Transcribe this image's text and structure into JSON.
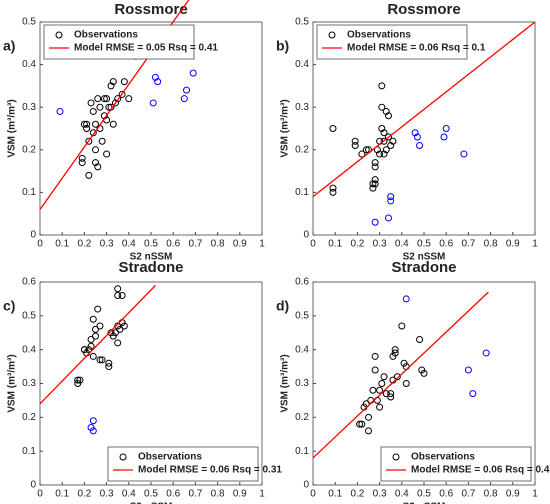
{
  "chart_data": [
    {
      "type": "scatter",
      "label": "a)",
      "title": "Rossmore",
      "xlabel": "S2 nSSM",
      "ylabel": "VSM (m³/m³)",
      "legend": "upper left",
      "grid": false,
      "xlim": [
        0,
        1
      ],
      "xticks": [
        0,
        0.1,
        0.2,
        0.3,
        0.4,
        0.5,
        0.6,
        0.7,
        0.8,
        0.9,
        1
      ],
      "ylim": [
        0,
        0.5
      ],
      "yticks": [
        0,
        0.1,
        0.2,
        0.3,
        0.4,
        0.5
      ],
      "series": [
        {
          "name": "Observations",
          "color": "#000000",
          "x": [
            0.19,
            0.19,
            0.2,
            0.21,
            0.21,
            0.22,
            0.22,
            0.23,
            0.24,
            0.24,
            0.25,
            0.25,
            0.26,
            0.26,
            0.27,
            0.27,
            0.28,
            0.29,
            0.29,
            0.3,
            0.3,
            0.31,
            0.32,
            0.32,
            0.33,
            0.33,
            0.34,
            0.35,
            0.37,
            0.38,
            0.4,
            0.43,
            0.3,
            0.25
          ],
          "values": [
            0.18,
            0.17,
            0.26,
            0.26,
            0.25,
            0.22,
            0.14,
            0.31,
            0.29,
            0.24,
            0.2,
            0.17,
            0.16,
            0.32,
            0.3,
            0.25,
            0.22,
            0.32,
            0.28,
            0.32,
            0.27,
            0.3,
            0.35,
            0.3,
            0.36,
            0.26,
            0.31,
            0.32,
            0.33,
            0.36,
            0.32,
            0.42,
            0.19,
            0.26
          ]
        },
        {
          "color": "#0000ff",
          "x": [
            0.09,
            0.51,
            0.52,
            0.53,
            0.65,
            0.66,
            0.69
          ],
          "values": [
            0.29,
            0.31,
            0.37,
            0.36,
            0.32,
            0.34,
            0.38
          ]
        },
        {
          "name": "Model RMSE = 0.05 Rsq = 0.41",
          "color": "#ff0000",
          "type": "line",
          "x": [
            0,
            0.79
          ],
          "values": [
            0.06,
            0.64
          ]
        }
      ]
    },
    {
      "type": "scatter",
      "label": "b)",
      "title": "Rossmore",
      "xlabel": "S2 nSSM",
      "ylabel": "VSM (m³/m³)",
      "legend": "upper left",
      "grid": false,
      "xlim": [
        0,
        1
      ],
      "xticks": [
        0,
        0.1,
        0.2,
        0.3,
        0.4,
        0.5,
        0.6,
        0.7,
        0.8,
        0.9,
        1
      ],
      "ylim": [
        0,
        0.5
      ],
      "yticks": [
        0,
        0.1,
        0.2,
        0.3,
        0.4,
        0.5
      ],
      "series": [
        {
          "name": "Observations",
          "color": "#000000",
          "x": [
            0.09,
            0.09,
            0.09,
            0.19,
            0.19,
            0.22,
            0.24,
            0.25,
            0.27,
            0.27,
            0.28,
            0.28,
            0.28,
            0.28,
            0.29,
            0.3,
            0.31,
            0.31,
            0.31,
            0.32,
            0.32,
            0.33,
            0.33,
            0.34,
            0.34,
            0.35,
            0.36,
            0.3,
            0.32
          ],
          "values": [
            0.25,
            0.11,
            0.1,
            0.22,
            0.21,
            0.19,
            0.2,
            0.2,
            0.12,
            0.11,
            0.13,
            0.12,
            0.17,
            0.16,
            0.2,
            0.22,
            0.35,
            0.3,
            0.25,
            0.24,
            0.22,
            0.2,
            0.29,
            0.28,
            0.23,
            0.21,
            0.22,
            0.19,
            0.19
          ]
        },
        {
          "color": "#0000ff",
          "x": [
            0.28,
            0.34,
            0.35,
            0.35,
            0.46,
            0.47,
            0.48,
            0.59,
            0.6,
            0.68
          ],
          "values": [
            0.03,
            0.04,
            0.09,
            0.08,
            0.24,
            0.23,
            0.21,
            0.23,
            0.25,
            0.19
          ]
        },
        {
          "name": "Model RMSE = 0.06 Rsq = 0.1",
          "color": "#ff0000",
          "type": "line",
          "x": [
            0,
            1
          ],
          "values": [
            0.09,
            0.5
          ]
        }
      ]
    },
    {
      "type": "scatter",
      "label": "c)",
      "title": "Stradone",
      "xlabel": "S2 nSSM",
      "ylabel": "VSM (m³/m³)",
      "legend": "lower right",
      "grid": false,
      "xlim": [
        0,
        1
      ],
      "xticks": [
        0,
        0.1,
        0.2,
        0.3,
        0.4,
        0.5,
        0.6,
        0.7,
        0.8,
        0.9,
        1
      ],
      "ylim": [
        0,
        0.6
      ],
      "yticks": [
        0,
        0.1,
        0.2,
        0.3,
        0.4,
        0.5,
        0.6
      ],
      "series": [
        {
          "name": "Observations",
          "color": "#000000",
          "x": [
            0.17,
            0.17,
            0.18,
            0.2,
            0.21,
            0.22,
            0.23,
            0.23,
            0.24,
            0.25,
            0.25,
            0.26,
            0.27,
            0.27,
            0.28,
            0.31,
            0.31,
            0.32,
            0.33,
            0.34,
            0.35,
            0.35,
            0.35,
            0.35,
            0.36,
            0.37,
            0.37,
            0.38,
            0.24,
            0.2
          ],
          "values": [
            0.3,
            0.31,
            0.31,
            0.4,
            0.39,
            0.4,
            0.43,
            0.41,
            0.49,
            0.44,
            0.46,
            0.52,
            0.47,
            0.37,
            0.37,
            0.36,
            0.35,
            0.45,
            0.44,
            0.45,
            0.47,
            0.42,
            0.56,
            0.58,
            0.46,
            0.48,
            0.56,
            0.47,
            0.38,
            0.4
          ]
        },
        {
          "color": "#0000ff",
          "x": [
            0.23,
            0.24,
            0.24
          ],
          "values": [
            0.17,
            0.19,
            0.16
          ]
        },
        {
          "name": "Model RMSE = 0.06 Rsq = 0.31",
          "color": "#ff0000",
          "type": "line",
          "x": [
            0,
            0.52
          ],
          "values": [
            0.24,
            0.59
          ]
        }
      ]
    },
    {
      "type": "scatter",
      "label": "d)",
      "title": "Stradone",
      "xlabel": "S2 nSSM",
      "ylabel": "VSM (m³/m³)",
      "legend": "lower right",
      "grid": false,
      "xlim": [
        0,
        1
      ],
      "xticks": [
        0,
        0.1,
        0.2,
        0.3,
        0.4,
        0.5,
        0.6,
        0.7,
        0.8,
        0.9,
        1
      ],
      "ylim": [
        0,
        0.6
      ],
      "yticks": [
        0,
        0.1,
        0.2,
        0.3,
        0.4,
        0.5,
        0.6
      ],
      "series": [
        {
          "name": "Observations",
          "color": "#000000",
          "x": [
            0.21,
            0.22,
            0.23,
            0.24,
            0.25,
            0.25,
            0.26,
            0.27,
            0.28,
            0.28,
            0.29,
            0.3,
            0.31,
            0.32,
            0.33,
            0.35,
            0.35,
            0.36,
            0.36,
            0.37,
            0.37,
            0.38,
            0.4,
            0.41,
            0.42,
            0.42,
            0.48,
            0.49,
            0.5,
            0.3
          ],
          "values": [
            0.18,
            0.18,
            0.23,
            0.24,
            0.2,
            0.16,
            0.25,
            0.28,
            0.34,
            0.38,
            0.25,
            0.23,
            0.3,
            0.32,
            0.27,
            0.27,
            0.26,
            0.31,
            0.38,
            0.4,
            0.39,
            0.32,
            0.47,
            0.36,
            0.35,
            0.3,
            0.43,
            0.34,
            0.33,
            0.28
          ]
        },
        {
          "color": "#0000ff",
          "x": [
            0.42,
            0.7,
            0.72,
            0.78
          ],
          "values": [
            0.55,
            0.34,
            0.27,
            0.39
          ]
        },
        {
          "name": "Model RMSE = 0.06 Rsq = 0.4",
          "color": "#ff0000",
          "type": "line",
          "x": [
            0,
            0.79
          ],
          "values": [
            0.08,
            0.57
          ]
        }
      ]
    }
  ]
}
